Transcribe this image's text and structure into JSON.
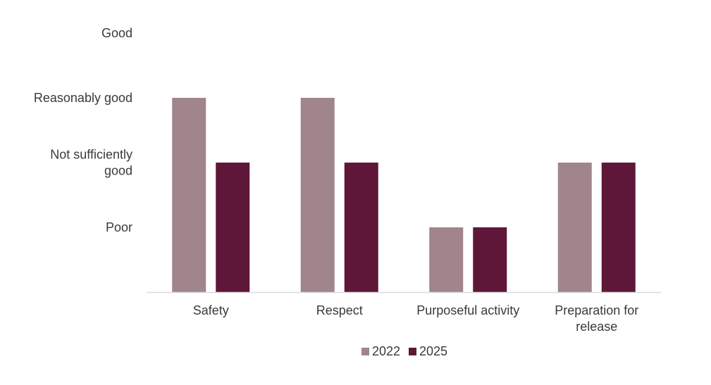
{
  "chart_data": {
    "type": "bar",
    "categories": [
      [
        "Safety"
      ],
      [
        "Respect"
      ],
      [
        "Purposeful activity"
      ],
      [
        "Preparation for",
        "release"
      ]
    ],
    "y_levels": [
      [
        "Poor"
      ],
      [
        "Not sufficiently",
        "good"
      ],
      [
        "Reasonably good"
      ],
      [
        "Good"
      ]
    ],
    "ylim": [
      0,
      4
    ],
    "series": [
      {
        "name": "2022",
        "color": "#a0858c",
        "values": [
          3,
          3,
          1,
          2
        ]
      },
      {
        "name": "2025",
        "color": "#5e1739",
        "values": [
          2,
          2,
          1,
          2
        ]
      }
    ],
    "legend_position": "bottom",
    "grid": false,
    "axis_color": "#d9d9d9"
  }
}
